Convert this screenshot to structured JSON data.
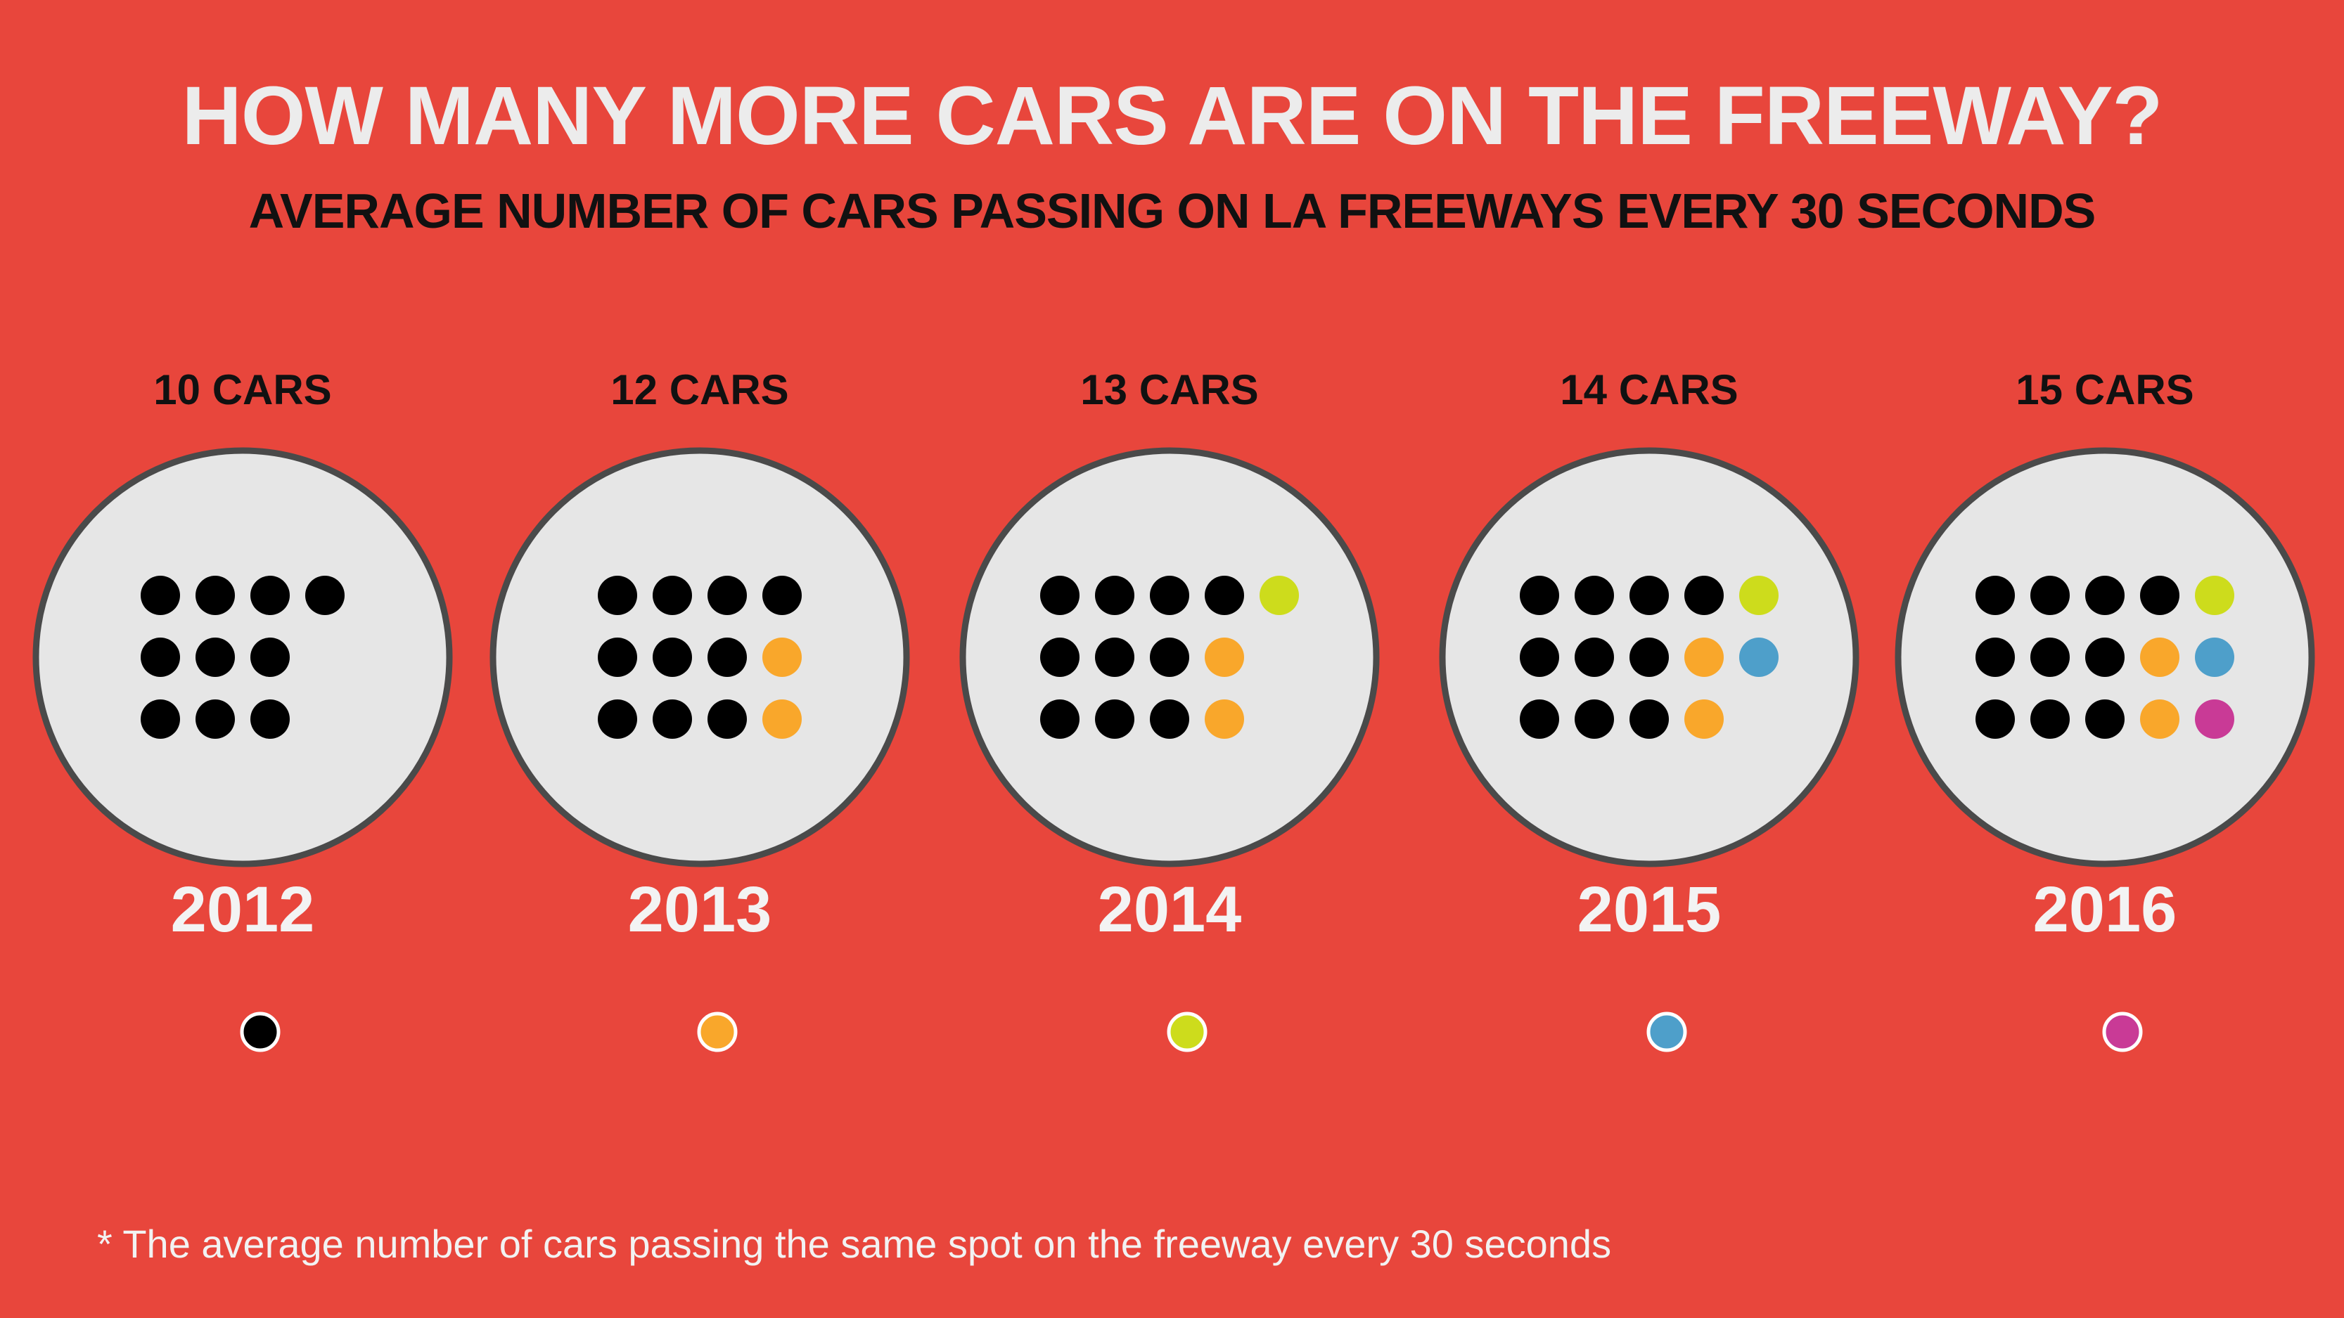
{
  "title": "HOW MANY MORE CARS ARE ON THE FREEWAY?",
  "subtitle": "AVERAGE NUMBER OF CARS PASSING ON LA FREEWAYS EVERY 30 SECONDS",
  "footnote": "* The average number of cars passing the same spot on the freeway every 30 seconds",
  "colors": {
    "background": "#e8463c",
    "circle_fill": "#e6e6e6",
    "circle_border": "#4a4a4a",
    "2012": "#000000",
    "2013": "#f9a72b",
    "2014": "#cddc1c",
    "2015": "#4e9fca",
    "2016": "#c93a96"
  },
  "chart_data": {
    "type": "pictogram",
    "unit": "cars",
    "categories": [
      "2012",
      "2013",
      "2014",
      "2015",
      "2016"
    ],
    "values": [
      10,
      12,
      13,
      14,
      15
    ],
    "value_labels": [
      "10 CARS",
      "12 CARS",
      "13 CARS",
      "14 CARS",
      "15 CARS"
    ],
    "legend": [
      {
        "year": "2012",
        "color": "#000000"
      },
      {
        "year": "2013",
        "color": "#f9a72b"
      },
      {
        "year": "2014",
        "color": "#cddc1c"
      },
      {
        "year": "2015",
        "color": "#4e9fca"
      },
      {
        "year": "2016",
        "color": "#c93a96"
      }
    ],
    "dots": [
      [
        "2012",
        "2012",
        "2012",
        "2012",
        "2012",
        "2012",
        "2012",
        "2012",
        "2012",
        "2012"
      ],
      [
        "2012",
        "2012",
        "2012",
        "2012",
        "2012",
        "2012",
        "2012",
        "2013",
        "2012",
        "2012",
        "2012",
        "2013"
      ],
      [
        "2012",
        "2012",
        "2012",
        "2012",
        "2014",
        "2012",
        "2012",
        "2012",
        "2013",
        "2012",
        "2012",
        "2012",
        "2013"
      ],
      [
        "2012",
        "2012",
        "2012",
        "2012",
        "2014",
        "2012",
        "2012",
        "2012",
        "2013",
        "2015",
        "2012",
        "2012",
        "2012",
        "2013"
      ],
      [
        "2012",
        "2012",
        "2012",
        "2012",
        "2014",
        "2012",
        "2012",
        "2012",
        "2013",
        "2015",
        "2012",
        "2012",
        "2012",
        "2013",
        "2016"
      ]
    ]
  }
}
